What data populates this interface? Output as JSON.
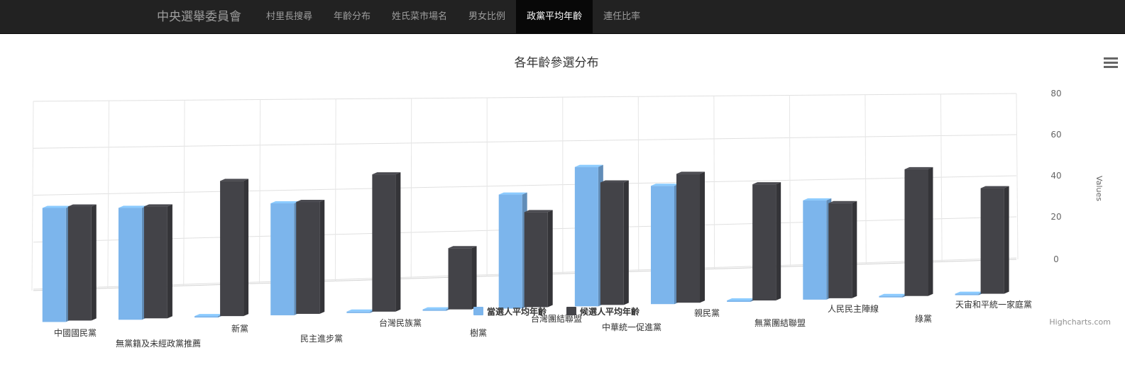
{
  "navbar": {
    "brand": "中央選舉委員會",
    "items": [
      {
        "label": "村里長搜尋",
        "active": false
      },
      {
        "label": "年齡分布",
        "active": false
      },
      {
        "label": "姓氏菜市場名",
        "active": false
      },
      {
        "label": "男女比例",
        "active": false
      },
      {
        "label": "政黨平均年齡",
        "active": true
      },
      {
        "label": "連任比率",
        "active": false
      }
    ]
  },
  "credits": "Highcharts.com",
  "icons": {
    "menu": "hamburger-menu-icon"
  },
  "colors": {
    "elected": "#7cb5ec",
    "candidate": "#434348",
    "navbar_bg": "#222222",
    "navbar_active": "#080808"
  },
  "chart_data": {
    "type": "bar",
    "title": "各年齡參選分布",
    "ylabel": "Values",
    "ylim": [
      0,
      80
    ],
    "yticks": [
      0,
      20,
      40,
      60,
      80
    ],
    "three_d": true,
    "grid": true,
    "legend_position": "bottom-center",
    "categories": [
      "中國國民黨",
      "無黨籍及未經政黨推薦",
      "新黨",
      "民主進步黨",
      "台灣民族黨",
      "樹黨",
      "台灣團結聯盟",
      "中華統一促進黨",
      "親民黨",
      "無黨團結聯盟",
      "人民民主陣線",
      "綠黨",
      "天宙和平統一家庭黨"
    ],
    "series": [
      {
        "name": "當選人平均年齡",
        "color": "#7cb5ec",
        "values": [
          54,
          53,
          0,
          53,
          0,
          0,
          54,
          66,
          56,
          0,
          47,
          0,
          0
        ]
      },
      {
        "name": "候選人平均年齡",
        "color": "#434348",
        "values": [
          54,
          53,
          64,
          53,
          65,
          29,
          45,
          58,
          61,
          55,
          45,
          60,
          50
        ]
      }
    ]
  }
}
